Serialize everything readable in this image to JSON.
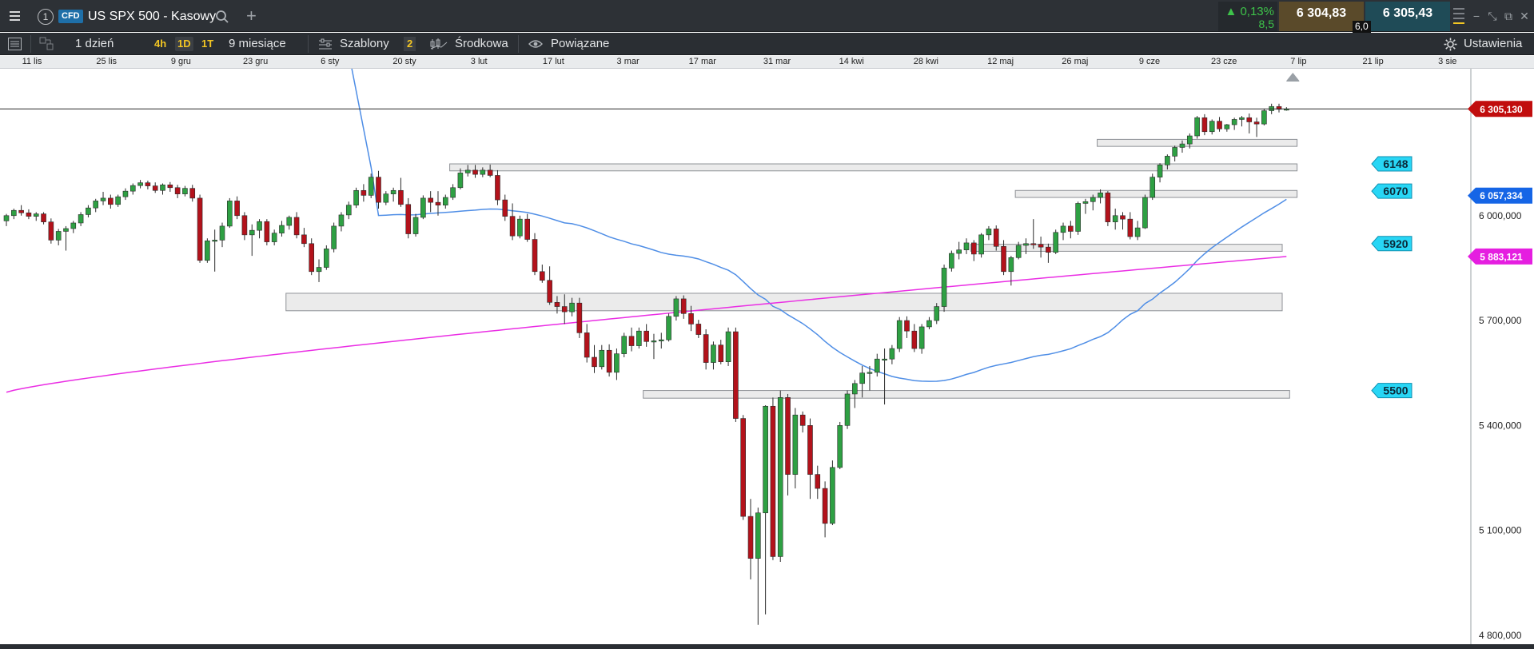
{
  "header": {
    "instrument_index": "1",
    "badge": "CFD",
    "title": "US SPX 500 - Kasowy",
    "change_pct": "0,13%",
    "change_abs": "8,5",
    "bid": "6 304,83",
    "ask": "6 305,43",
    "spread": "6,0"
  },
  "toolbar": {
    "period": "1 dzień",
    "tf_4h": "4h",
    "tf_1d": "1D",
    "tf_1t": "1T",
    "range": "9 miesiące",
    "templates": "Szablony",
    "templates_count": "2",
    "indicator": "Środkowa",
    "linked": "Powiązane",
    "settings": "Ustawienia"
  },
  "chart_data": {
    "type": "candlestick",
    "date_labels": [
      "11 lis",
      "25 lis",
      "9 gru",
      "23 gru",
      "6 sty",
      "20 sty",
      "3 lut",
      "17 lut",
      "3 mar",
      "17 mar",
      "31 mar",
      "14 kwi",
      "28 kwi",
      "12 maj",
      "26 maj",
      "9 cze",
      "23 cze",
      "7 lip",
      "21 lip",
      "3 sie"
    ],
    "price_ticks": [
      "6 000,000",
      "5 700,000",
      "5 400,000",
      "5 100,000",
      "4 800,000"
    ],
    "price_tick_values": [
      6000,
      5700,
      5400,
      5100,
      4800
    ],
    "ylim": [
      4770,
      6420
    ],
    "current_price_label": "6 305,130",
    "current_price": 6305.13,
    "ma_blue_label": "6 057,334",
    "ma_blue_value": 6057.334,
    "ma_pink_label": "5 883,121",
    "ma_pink_value": 5883.121,
    "levels": [
      {
        "label": "6148",
        "value": 6148
      },
      {
        "label": "6070",
        "value": 6070
      },
      {
        "label": "5920",
        "value": 5920
      },
      {
        "label": "5500",
        "value": 5500
      }
    ],
    "zones": [
      {
        "from_index": 147,
        "to_index": 173,
        "low": 6198,
        "high": 6218
      },
      {
        "from_index": 60,
        "to_index": 173,
        "low": 6128,
        "high": 6148
      },
      {
        "from_index": 136,
        "to_index": 173,
        "low": 6052,
        "high": 6072
      },
      {
        "from_index": 130,
        "to_index": 171,
        "low": 5898,
        "high": 5918
      },
      {
        "from_index": 38,
        "to_index": 171,
        "low": 5728,
        "high": 5778
      },
      {
        "from_index": 86,
        "to_index": 172,
        "low": 5478,
        "high": 5500
      }
    ],
    "colors": {
      "up": "#2ea043",
      "down": "#b3121b",
      "ma_blue": "#4f8ee6",
      "ma_pink": "#ea2ee4",
      "price_red": "#c10d0d",
      "level_cyan": "#28d6f5",
      "ma_blue_tag": "#1565e6",
      "ma_pink_tag": "#e51ee0"
    },
    "candles": [
      [
        5985,
        6005,
        5970,
        6000
      ],
      [
        6000,
        6020,
        5990,
        6015
      ],
      [
        6015,
        6030,
        6000,
        6008
      ],
      [
        6008,
        6018,
        5990,
        5998
      ],
      [
        5998,
        6010,
        5985,
        6005
      ],
      [
        6005,
        6010,
        5975,
        5982
      ],
      [
        5982,
        5992,
        5920,
        5930
      ],
      [
        5930,
        5962,
        5915,
        5955
      ],
      [
        5955,
        5970,
        5900,
        5963
      ],
      [
        5963,
        5985,
        5950,
        5979
      ],
      [
        5979,
        6010,
        5970,
        6003
      ],
      [
        6003,
        6030,
        5995,
        6022
      ],
      [
        6022,
        6048,
        6010,
        6042
      ],
      [
        6042,
        6068,
        6030,
        6050
      ],
      [
        6050,
        6060,
        6020,
        6032
      ],
      [
        6032,
        6060,
        6025,
        6054
      ],
      [
        6054,
        6078,
        6045,
        6070
      ],
      [
        6070,
        6092,
        6060,
        6086
      ],
      [
        6086,
        6102,
        6078,
        6094
      ],
      [
        6094,
        6100,
        6075,
        6085
      ],
      [
        6085,
        6095,
        6065,
        6072
      ],
      [
        6072,
        6092,
        6060,
        6088
      ],
      [
        6088,
        6096,
        6068,
        6080
      ],
      [
        6080,
        6088,
        6050,
        6062
      ],
      [
        6062,
        6085,
        6055,
        6078
      ],
      [
        6078,
        6088,
        6040,
        6050
      ],
      [
        6050,
        6060,
        5865,
        5872
      ],
      [
        5872,
        5935,
        5865,
        5928
      ],
      [
        5928,
        5960,
        5840,
        5930
      ],
      [
        5930,
        5980,
        5910,
        5970
      ],
      [
        5970,
        6050,
        5965,
        6042
      ],
      [
        6042,
        6055,
        5990,
        6000
      ],
      [
        6000,
        6010,
        5930,
        5945
      ],
      [
        5945,
        5975,
        5885,
        5958
      ],
      [
        5958,
        5990,
        5935,
        5983
      ],
      [
        5983,
        5990,
        5915,
        5925
      ],
      [
        5925,
        5960,
        5915,
        5950
      ],
      [
        5950,
        5985,
        5940,
        5972
      ],
      [
        5972,
        6000,
        5960,
        5995
      ],
      [
        5995,
        6010,
        5935,
        5945
      ],
      [
        5945,
        5965,
        5910,
        5920
      ],
      [
        5920,
        5935,
        5830,
        5840
      ],
      [
        5840,
        5875,
        5810,
        5852
      ],
      [
        5852,
        5915,
        5845,
        5905
      ],
      [
        5905,
        5980,
        5895,
        5970
      ],
      [
        5970,
        6010,
        5955,
        6002
      ],
      [
        6002,
        6040,
        5990,
        6030
      ],
      [
        6030,
        6080,
        6022,
        6072
      ],
      [
        6072,
        6090,
        6040,
        6058
      ],
      [
        6058,
        6120,
        6050,
        6110
      ],
      [
        6110,
        6128,
        6020,
        6038
      ],
      [
        6038,
        6070,
        6030,
        6062
      ],
      [
        6062,
        6080,
        6040,
        6072
      ],
      [
        6072,
        6108,
        6025,
        6032
      ],
      [
        6032,
        6050,
        5935,
        5948
      ],
      [
        5948,
        6005,
        5940,
        5995
      ],
      [
        5995,
        6058,
        5990,
        6050
      ],
      [
        6050,
        6070,
        6010,
        6038
      ],
      [
        6038,
        6070,
        6000,
        6030
      ],
      [
        6030,
        6060,
        6020,
        6052
      ],
      [
        6052,
        6090,
        6045,
        6080
      ],
      [
        6080,
        6135,
        6075,
        6122
      ],
      [
        6122,
        6145,
        6112,
        6130
      ],
      [
        6130,
        6145,
        6108,
        6118
      ],
      [
        6118,
        6138,
        6110,
        6130
      ],
      [
        6130,
        6146,
        6110,
        6115
      ],
      [
        6115,
        6130,
        6030,
        6045
      ],
      [
        6045,
        6060,
        5985,
        5998
      ],
      [
        5998,
        6035,
        5930,
        5942
      ],
      [
        5942,
        6000,
        5935,
        5990
      ],
      [
        5990,
        6005,
        5925,
        5932
      ],
      [
        5932,
        5950,
        5830,
        5840
      ],
      [
        5840,
        5860,
        5808,
        5815
      ],
      [
        5815,
        5855,
        5745,
        5752
      ],
      [
        5752,
        5770,
        5720,
        5740
      ],
      [
        5740,
        5775,
        5690,
        5725
      ],
      [
        5725,
        5765,
        5712,
        5750
      ],
      [
        5750,
        5765,
        5650,
        5665
      ],
      [
        5665,
        5690,
        5580,
        5595
      ],
      [
        5595,
        5630,
        5550,
        5568
      ],
      [
        5568,
        5630,
        5560,
        5615
      ],
      [
        5615,
        5632,
        5540,
        5552
      ],
      [
        5552,
        5620,
        5530,
        5605
      ],
      [
        5605,
        5665,
        5595,
        5655
      ],
      [
        5655,
        5680,
        5612,
        5628
      ],
      [
        5628,
        5680,
        5620,
        5670
      ],
      [
        5670,
        5690,
        5625,
        5640
      ],
      [
        5640,
        5662,
        5590,
        5642
      ],
      [
        5642,
        5665,
        5620,
        5645
      ],
      [
        5645,
        5720,
        5640,
        5712
      ],
      [
        5712,
        5770,
        5700,
        5762
      ],
      [
        5762,
        5772,
        5705,
        5720
      ],
      [
        5720,
        5742,
        5670,
        5690
      ],
      [
        5690,
        5702,
        5650,
        5660
      ],
      [
        5660,
        5675,
        5560,
        5580
      ],
      [
        5580,
        5640,
        5560,
        5630
      ],
      [
        5630,
        5645,
        5575,
        5582
      ],
      [
        5582,
        5680,
        5570,
        5668
      ],
      [
        5668,
        5680,
        5410,
        5420
      ],
      [
        5420,
        5430,
        5130,
        5140
      ],
      [
        5140,
        5190,
        4960,
        5020
      ],
      [
        5020,
        5165,
        4830,
        5150
      ],
      [
        5150,
        5458,
        4860,
        5455
      ],
      [
        5455,
        5480,
        5015,
        5025
      ],
      [
        5025,
        5500,
        5010,
        5480
      ],
      [
        5480,
        5490,
        5200,
        5260
      ],
      [
        5260,
        5450,
        5220,
        5430
      ],
      [
        5430,
        5440,
        5380,
        5400
      ],
      [
        5400,
        5420,
        5190,
        5260
      ],
      [
        5260,
        5285,
        5190,
        5220
      ],
      [
        5220,
        5240,
        5080,
        5120
      ],
      [
        5120,
        5300,
        5115,
        5280
      ],
      [
        5280,
        5410,
        5275,
        5400
      ],
      [
        5400,
        5500,
        5390,
        5490
      ],
      [
        5490,
        5530,
        5450,
        5520
      ],
      [
        5520,
        5570,
        5480,
        5550
      ],
      [
        5550,
        5570,
        5500,
        5552
      ],
      [
        5552,
        5605,
        5540,
        5590
      ],
      [
        5590,
        5620,
        5460,
        5590
      ],
      [
        5590,
        5630,
        5575,
        5620
      ],
      [
        5620,
        5710,
        5610,
        5700
      ],
      [
        5700,
        5712,
        5650,
        5670
      ],
      [
        5670,
        5690,
        5610,
        5620
      ],
      [
        5620,
        5690,
        5605,
        5682
      ],
      [
        5682,
        5710,
        5675,
        5700
      ],
      [
        5700,
        5750,
        5690,
        5740
      ],
      [
        5740,
        5860,
        5725,
        5850
      ],
      [
        5850,
        5900,
        5840,
        5892
      ],
      [
        5892,
        5925,
        5875,
        5902
      ],
      [
        5902,
        5935,
        5890,
        5922
      ],
      [
        5922,
        5930,
        5870,
        5890
      ],
      [
        5890,
        5950,
        5880,
        5945
      ],
      [
        5945,
        5970,
        5930,
        5962
      ],
      [
        5962,
        5972,
        5900,
        5912
      ],
      [
        5912,
        5930,
        5830,
        5840
      ],
      [
        5840,
        5885,
        5800,
        5880
      ],
      [
        5880,
        5925,
        5875,
        5915
      ],
      [
        5915,
        5935,
        5890,
        5920
      ],
      [
        5920,
        5990,
        5905,
        5918
      ],
      [
        5918,
        5940,
        5880,
        5910
      ],
      [
        5910,
        5920,
        5865,
        5895
      ],
      [
        5895,
        5960,
        5890,
        5952
      ],
      [
        5952,
        5980,
        5930,
        5970
      ],
      [
        5970,
        5985,
        5935,
        5955
      ],
      [
        5955,
        6040,
        5945,
        6035
      ],
      [
        6035,
        6048,
        6005,
        6040
      ],
      [
        6040,
        6060,
        6015,
        6052
      ],
      [
        6052,
        6075,
        6035,
        6065
      ],
      [
        6065,
        6070,
        5970,
        5982
      ],
      [
        5982,
        6020,
        5960,
        6000
      ],
      [
        6000,
        6010,
        5960,
        5990
      ],
      [
        5990,
        6010,
        5932,
        5940
      ],
      [
        5940,
        5985,
        5930,
        5965
      ],
      [
        5965,
        6060,
        5962,
        6052
      ],
      [
        6052,
        6120,
        6045,
        6110
      ],
      [
        6110,
        6150,
        6095,
        6145
      ],
      [
        6145,
        6175,
        6132,
        6170
      ],
      [
        6170,
        6200,
        6155,
        6195
      ],
      [
        6195,
        6215,
        6180,
        6205
      ],
      [
        6205,
        6235,
        6192,
        6228
      ],
      [
        6228,
        6285,
        6220,
        6280
      ],
      [
        6280,
        6290,
        6230,
        6240
      ],
      [
        6240,
        6275,
        6232,
        6270
      ],
      [
        6270,
        6282,
        6240,
        6248
      ],
      [
        6248,
        6262,
        6240,
        6260
      ],
      [
        6260,
        6280,
        6245,
        6275
      ],
      [
        6275,
        6285,
        6255,
        6280
      ],
      [
        6280,
        6292,
        6235,
        6268
      ],
      [
        6268,
        6280,
        6225,
        6262
      ],
      [
        6262,
        6305,
        6258,
        6300
      ],
      [
        6300,
        6320,
        6290,
        6312
      ],
      [
        6312,
        6320,
        6295,
        6304
      ],
      [
        6304,
        6310,
        6300,
        6305
      ]
    ]
  }
}
